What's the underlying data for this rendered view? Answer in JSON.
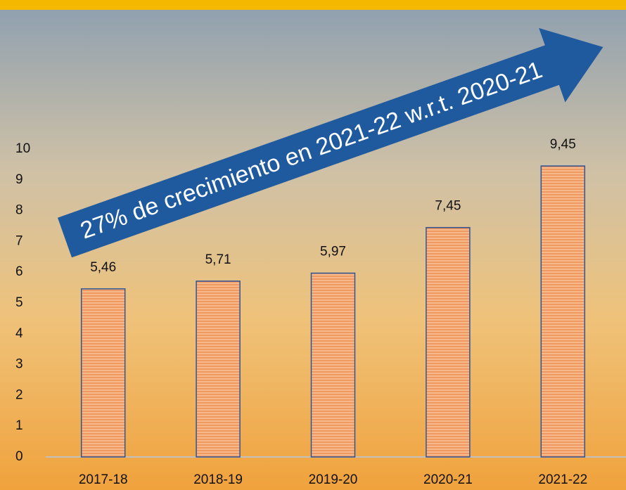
{
  "chart_data": {
    "type": "bar",
    "annotation": "27% de crecimiento en 2021-22 w.r.t. 2020-21",
    "categories": [
      "2017-18",
      "2018-19",
      "2019-20",
      "2020-21",
      "2021-22"
    ],
    "values": [
      5.46,
      5.71,
      5.97,
      7.45,
      9.45
    ],
    "value_labels": [
      "5,46",
      "5,71",
      "5,97",
      "7,45",
      "9,45"
    ],
    "color": "#f7b98a",
    "ylim": [
      0,
      10
    ],
    "yticks": [
      0,
      1,
      2,
      3,
      4,
      5,
      6,
      7,
      8,
      9,
      10
    ],
    "grid": false
  }
}
